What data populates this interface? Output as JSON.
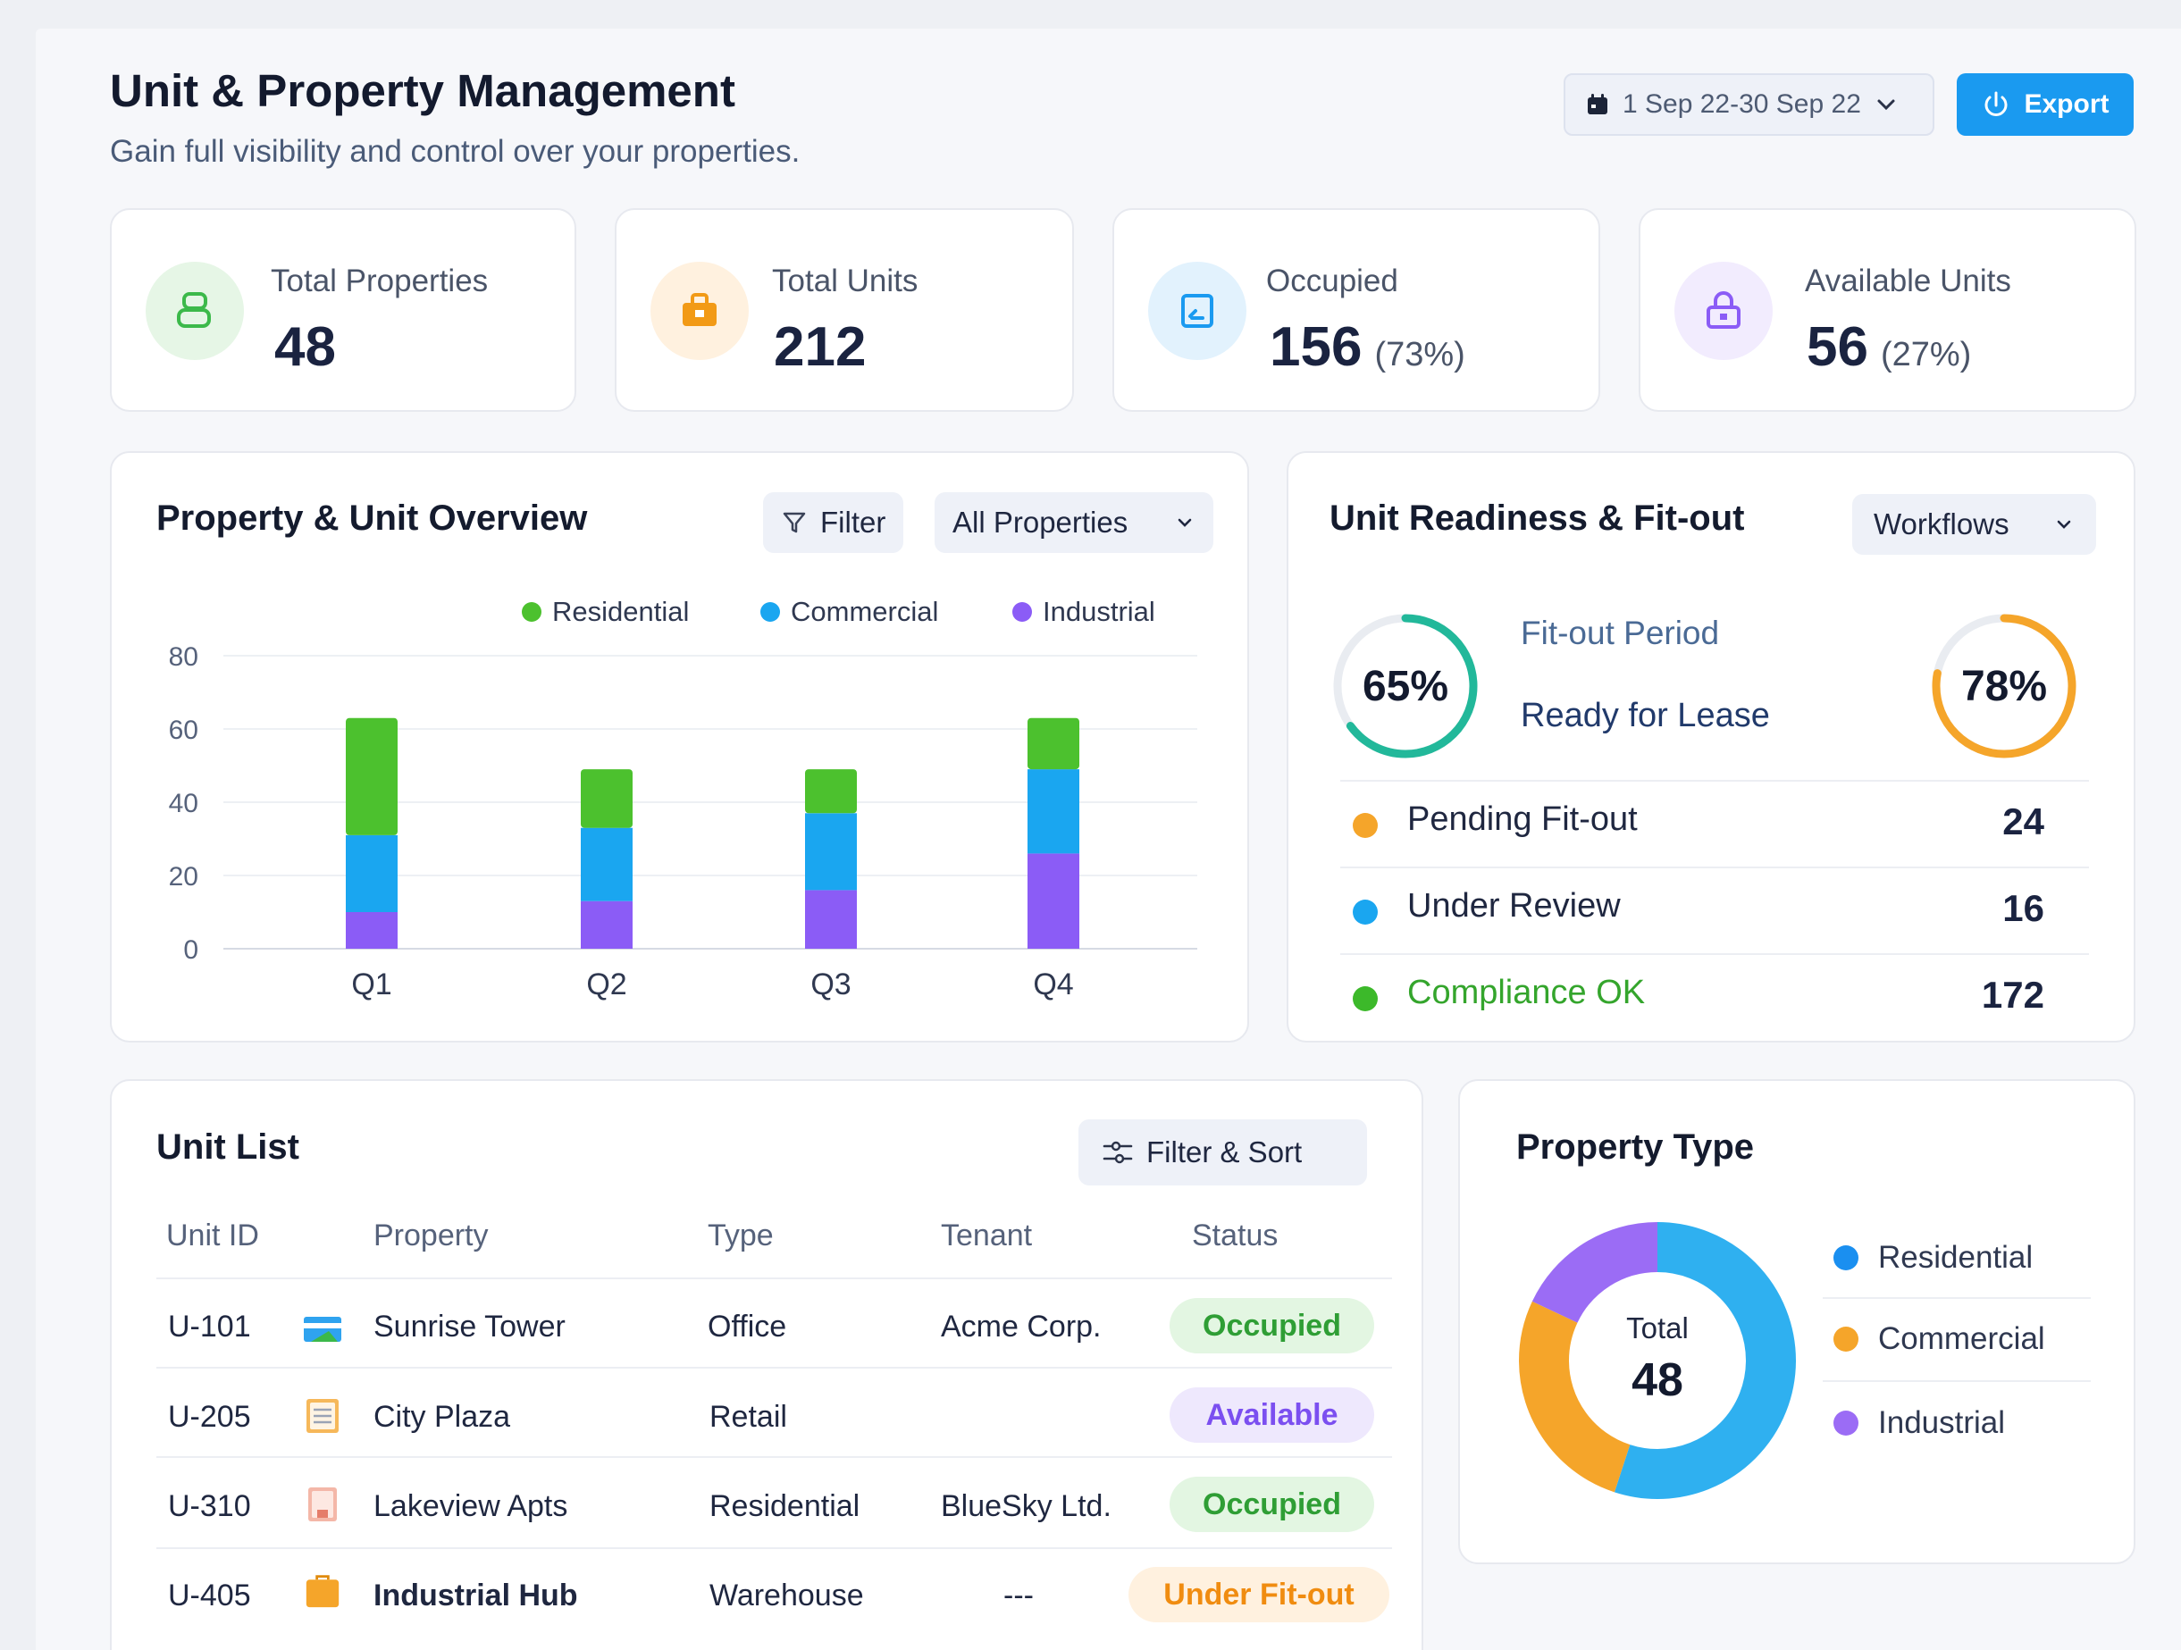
{
  "header": {
    "title": "Unit & Property Management",
    "subtitle": "Gain full visibility and control over your properties.",
    "date_range": "1 Sep 22-30 Sep 22",
    "export_label": "Export"
  },
  "kpis": [
    {
      "label": "Total Properties",
      "value": "48",
      "pct": "",
      "icon": "building-icon",
      "color": "#3cb94a"
    },
    {
      "label": "Total Units",
      "value": "212",
      "pct": "",
      "icon": "briefcase-icon",
      "color": "#f29a16"
    },
    {
      "label": "Occupied",
      "value": "156",
      "pct": "(73%)",
      "icon": "checkbox-icon",
      "color": "#1a9af0"
    },
    {
      "label": "Available Units",
      "value": "56",
      "pct": "(27%)",
      "icon": "lock-icon",
      "color": "#8b5cf6"
    }
  ],
  "overview": {
    "title": "Property & Unit Overview",
    "filter_label": "Filter",
    "select_label": "All Properties"
  },
  "chart_data": {
    "type": "bar",
    "stacked": true,
    "categories": [
      "Q1",
      "Q2",
      "Q3",
      "Q4"
    ],
    "series": [
      {
        "name": "Industrial",
        "values": [
          10,
          13,
          16,
          26
        ],
        "color": "#8b5cf6"
      },
      {
        "name": "Commercial",
        "values": [
          21,
          20,
          21,
          23
        ],
        "color": "#1aa6f0"
      },
      {
        "name": "Residential",
        "values": [
          32,
          16,
          12,
          14
        ],
        "color": "#4cc12e"
      }
    ],
    "ylim": [
      0,
      80
    ],
    "yticks": [
      "80",
      "60",
      "40",
      "20",
      "0"
    ],
    "legend": [
      "Residential",
      "Commercial",
      "Industrial"
    ],
    "legend_position": "top-right",
    "grid": true
  },
  "readiness": {
    "title": "Unit Readiness & Fit-out",
    "workflows_label": "Workflows",
    "fitout_period_label": "Fit-out Period",
    "ready_for_lease_label": "Ready for Lease",
    "left_gauge": {
      "pct": 65,
      "label": "65%",
      "color": "#22b89a"
    },
    "right_gauge": {
      "pct": 78,
      "label": "78%",
      "color": "#f5a52a"
    },
    "rows": [
      {
        "label": "Pending Fit-out",
        "value": "24",
        "color": "#f5a52a",
        "label_color": "#1f2740"
      },
      {
        "label": "Under Review",
        "value": "16",
        "color": "#1aa6f0",
        "label_color": "#1f2740"
      },
      {
        "label": "Compliance OK",
        "value": "172",
        "color": "#3cb92a",
        "label_color": "#34a52c"
      }
    ]
  },
  "unit_list": {
    "title": "Unit List",
    "filter_sort_label": "Filter & Sort",
    "columns": [
      "Unit ID",
      "Property",
      "Type",
      "Tenant",
      "Status"
    ],
    "rows": [
      {
        "unit_id": "U-101",
        "property": "Sunrise Tower",
        "type": "Office",
        "tenant": "Acme Corp.",
        "status": "Occupied",
        "icon": "office-card-icon"
      },
      {
        "unit_id": "U-205",
        "property": "City Plaza",
        "type": "Retail",
        "tenant": "",
        "status": "Available",
        "icon": "store-list-icon"
      },
      {
        "unit_id": "U-310",
        "property": "Lakeview Apts",
        "type": "Residential",
        "tenant": "BlueSky Ltd.",
        "status": "Occupied",
        "icon": "apartment-icon"
      },
      {
        "unit_id": "U-405",
        "property": "Industrial Hub",
        "type": "Warehouse",
        "tenant": "---",
        "status": "Under Fit-out",
        "icon": "warehouse-icon"
      }
    ]
  },
  "property_type": {
    "title": "Property Type",
    "total_label": "Total",
    "total_value": "48",
    "segments": [
      {
        "name": "Residential",
        "share": 0.55,
        "color": "#2fb0f0"
      },
      {
        "name": "Commercial",
        "share": 0.27,
        "color": "#f5a52a"
      },
      {
        "name": "Industrial",
        "share": 0.18,
        "color": "#9b6cf5"
      }
    ]
  }
}
